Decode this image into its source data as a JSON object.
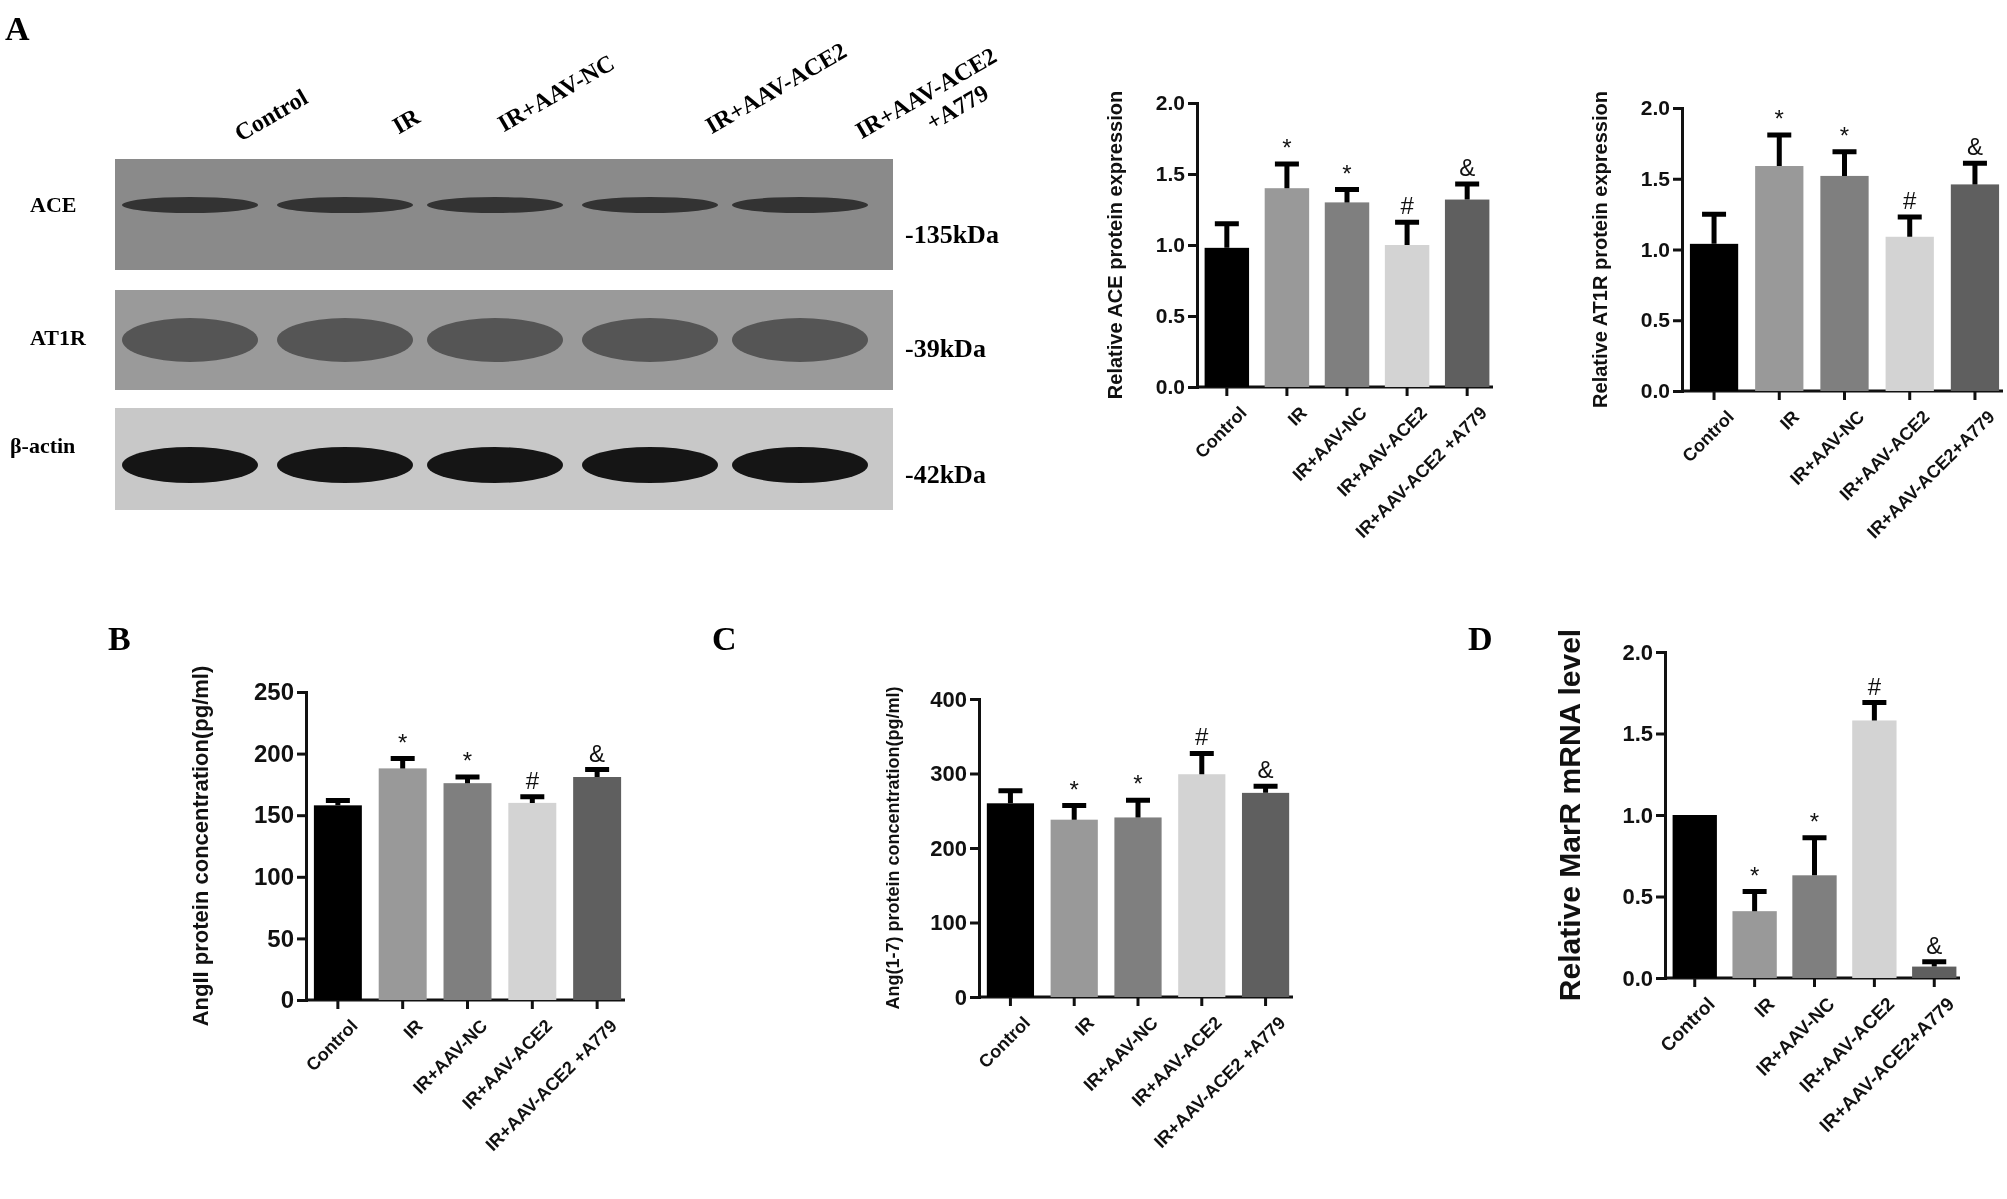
{
  "chart_data": [
    {
      "type": "other",
      "title": "A",
      "annotations": [
        "Control",
        "IR",
        "IR+AAV-NC",
        "IR+AAV-ACE2",
        "IR+AAV-ACE2 +A779",
        "ACE",
        "AT1R",
        "β-actin",
        "-135kDa",
        "-39kDa",
        "-42kDa"
      ]
    },
    {
      "type": "bar",
      "ylabel": "Relative ACE protein expression",
      "categories": [
        "Control",
        "IR",
        "IR+AAV-NC",
        "IR+AAV-ACE2",
        "IR+AAV-ACE2 +A779"
      ],
      "values": [
        0.98,
        1.4,
        1.3,
        1.0,
        1.32
      ],
      "errors": [
        0.17,
        0.17,
        0.09,
        0.16,
        0.11
      ],
      "colors": [
        "#000000",
        "#999999",
        "#7f7f7f",
        "#d3d3d3",
        "#5f5f5f"
      ],
      "ylim": [
        0,
        2
      ],
      "yticks": [
        {
          "value": 0,
          "label": "0.0"
        },
        {
          "value": 0.5,
          "label": "0.5"
        },
        {
          "value": 1,
          "label": "1.0"
        },
        {
          "value": 1.5,
          "label": "1.5"
        },
        {
          "value": 2,
          "label": "2.0"
        }
      ],
      "annotations": [
        {
          "text": "*",
          "x": "IR",
          "y": 1.57
        },
        {
          "text": "*",
          "x": "IR+AAV-NC",
          "y": 1.39
        },
        {
          "text": "#",
          "x": "IR+AAV-ACE2",
          "y": 1.16
        },
        {
          "text": "&",
          "x": "IR+AAV-ACE2 +A779",
          "y": 1.43
        }
      ]
    },
    {
      "type": "bar",
      "ylabel": "Relative AT1R protein expression",
      "categories": [
        "Control",
        "IR",
        "IR+AAV-NC",
        "IR+AAV-ACE2",
        "IR+AAV-ACE2+A779"
      ],
      "values": [
        1.04,
        1.59,
        1.52,
        1.09,
        1.46
      ],
      "errors": [
        0.21,
        0.22,
        0.17,
        0.14,
        0.15
      ],
      "colors": [
        "#000000",
        "#999999",
        "#7f7f7f",
        "#d3d3d3",
        "#5f5f5f"
      ],
      "ylim": [
        0,
        2
      ],
      "yticks": [
        {
          "value": 0,
          "label": "0.0"
        },
        {
          "value": 0.5,
          "label": "0.5"
        },
        {
          "value": 1,
          "label": "1.0"
        },
        {
          "value": 1.5,
          "label": "1.5"
        },
        {
          "value": 2,
          "label": "2.0"
        }
      ],
      "annotations": [
        {
          "text": "*",
          "x": "IR",
          "y": 1.81
        },
        {
          "text": "*",
          "x": "IR+AAV-NC",
          "y": 1.69
        },
        {
          "text": "#",
          "x": "IR+AAV-ACE2",
          "y": 1.23
        },
        {
          "text": "&",
          "x": "IR+AAV-ACE2+A779",
          "y": 1.61
        }
      ]
    },
    {
      "type": "bar",
      "title": "B",
      "ylabel": "AngII protein concentration(pg/ml)",
      "categories": [
        "Control",
        "IR",
        "IR+AAV-NC",
        "IR+AAV-ACE2",
        "IR+AAV-ACE2 +A779"
      ],
      "values": [
        158,
        188,
        176,
        160,
        181
      ],
      "errors": [
        4,
        8,
        5,
        5,
        6
      ],
      "colors": [
        "#000000",
        "#999999",
        "#7f7f7f",
        "#d3d3d3",
        "#5f5f5f"
      ],
      "ylim": [
        0,
        250
      ],
      "yticks": [
        0,
        50,
        100,
        150,
        200,
        250
      ],
      "annotations": [
        {
          "text": "*",
          "x": "IR",
          "y": 196
        },
        {
          "text": "*",
          "x": "IR+AAV-NC",
          "y": 181
        },
        {
          "text": "#",
          "x": "IR+AAV-ACE2",
          "y": 165
        },
        {
          "text": "&",
          "x": "IR+AAV-ACE2 +A779",
          "y": 187
        }
      ]
    },
    {
      "type": "bar",
      "title": "C",
      "ylabel": "Ang(1-7) protein concentration(pg/ml)",
      "categories": [
        "Control",
        "IR",
        "IR+AAV-NC",
        "IR+AAV-ACE2",
        "IR+AAV-ACE2 +A779"
      ],
      "values": [
        260,
        238,
        241,
        299,
        274
      ],
      "errors": [
        17,
        19,
        23,
        28,
        9
      ],
      "colors": [
        "#000000",
        "#999999",
        "#7f7f7f",
        "#d3d3d3",
        "#5f5f5f"
      ],
      "ylim": [
        0,
        400
      ],
      "yticks": [
        0,
        100,
        200,
        300,
        400
      ],
      "annotations": [
        {
          "text": "*",
          "x": "IR",
          "y": 257
        },
        {
          "text": "*",
          "x": "IR+AAV-NC",
          "y": 264
        },
        {
          "text": "#",
          "x": "IR+AAV-ACE2",
          "y": 327
        },
        {
          "text": "&",
          "x": "IR+AAV-ACE2 +A779",
          "y": 283
        }
      ]
    },
    {
      "type": "bar",
      "title": "D",
      "ylabel": "Relative MarR mRNA level",
      "categories": [
        "Control",
        "IR",
        "IR+AAV-NC",
        "IR+AAV-ACE2",
        "IR+AAV-ACE2+A779"
      ],
      "values": [
        1.0,
        0.41,
        0.63,
        1.58,
        0.07
      ],
      "errors": [
        null,
        0.12,
        0.23,
        0.11,
        0.03
      ],
      "colors": [
        "#000000",
        "#999999",
        "#7f7f7f",
        "#d3d3d3",
        "#5f5f5f"
      ],
      "ylim": [
        0,
        2
      ],
      "yticks": [
        {
          "value": 0,
          "label": "0.0"
        },
        {
          "value": 0.5,
          "label": "0.5"
        },
        {
          "value": 1,
          "label": "1.0"
        },
        {
          "value": 1.5,
          "label": "1.5"
        },
        {
          "value": 2,
          "label": "2.0"
        }
      ],
      "annotations": [
        {
          "text": "*",
          "x": "IR",
          "y": 0.53
        },
        {
          "text": "*",
          "x": "IR+AAV-NC",
          "y": 0.86
        },
        {
          "text": "#",
          "x": "IR+AAV-ACE2",
          "y": 1.69
        },
        {
          "text": "&",
          "x": "IR+AAV-ACE2+A779",
          "y": 0.1
        }
      ]
    }
  ]
}
